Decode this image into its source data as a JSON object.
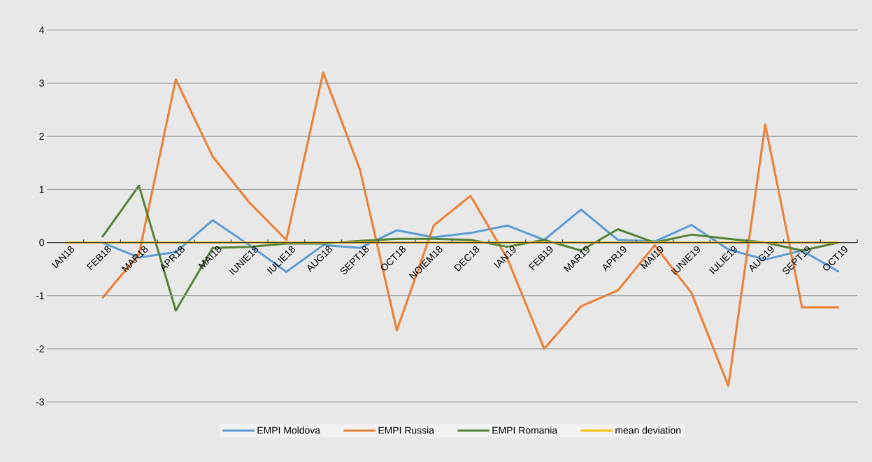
{
  "chart_data": {
    "type": "line",
    "categories": [
      "IAN18",
      "FEB18",
      "MAR18",
      "APR18",
      "MAI18",
      "IUNIE18",
      "IULIE18",
      "AUG18",
      "SEPT18",
      "OCT18",
      "NOIEM18",
      "DEC18",
      "IAN19",
      "FEB19",
      "MAR19",
      "APR19",
      "MAI19",
      "IUNIE19",
      "IULIE19",
      "AUG19",
      "SEPT19",
      "OCT19"
    ],
    "series": [
      {
        "name": "EMPI Moldova",
        "color": "#5b9bd5",
        "values": [
          null,
          0,
          -0.28,
          -0.18,
          0.42,
          -0.05,
          -0.55,
          -0.05,
          -0.1,
          0.23,
          0.1,
          0.18,
          0.32,
          0.05,
          0.62,
          0.05,
          0.02,
          0.33,
          -0.13,
          -0.32,
          -0.15,
          -0.55
        ]
      },
      {
        "name": "EMPI Russia",
        "color": "#ed7d31",
        "values": [
          null,
          -1.05,
          -0.22,
          3.07,
          1.62,
          0.75,
          0.05,
          3.2,
          1.37,
          -1.65,
          0.32,
          0.88,
          -0.3,
          -2.0,
          -1.2,
          -0.9,
          -0.05,
          -0.95,
          -2.7,
          2.22,
          -1.22,
          -1.22
        ]
      },
      {
        "name": "EMPI Romania",
        "color": "#548235",
        "values": [
          null,
          0.1,
          1.07,
          -1.28,
          -0.1,
          -0.08,
          -0.02,
          -0.02,
          0.03,
          0.07,
          0.07,
          0.05,
          -0.08,
          0.05,
          -0.15,
          0.25,
          0.0,
          0.15,
          0.07,
          0.0,
          -0.15,
          0.0
        ]
      },
      {
        "name": "mean deviation",
        "color": "#ffc000",
        "values": [
          0,
          0,
          0,
          0,
          0,
          0,
          0,
          0,
          0,
          0,
          0,
          0,
          0,
          0,
          0,
          0,
          0,
          0,
          0,
          0,
          0,
          0
        ]
      }
    ],
    "ylim": [
      -3,
      4
    ],
    "yticks": [
      -3,
      -2,
      -1,
      0,
      1,
      2,
      3,
      4
    ],
    "grid": "y",
    "legend": "bottom",
    "marker": "none",
    "line_style": "solid"
  }
}
